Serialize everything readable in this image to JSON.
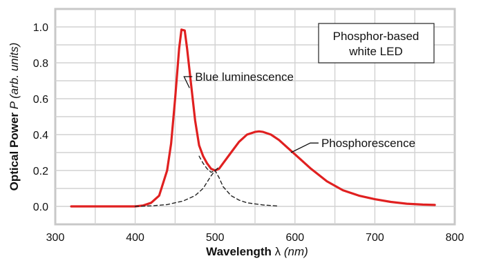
{
  "chart_data": {
    "type": "line",
    "xlabel": {
      "bold": "Wavelength",
      "symbol": " λ ",
      "unit": "(nm)"
    },
    "ylabel": {
      "bold": "Optical Power",
      "symbol": " P ",
      "unit": "(arb. units)"
    },
    "xlim": [
      300,
      800
    ],
    "ylim": [
      -0.1,
      1.1
    ],
    "x_ticks": [
      300,
      400,
      500,
      600,
      700,
      800
    ],
    "x_tick_labels": [
      "300",
      "400",
      "500",
      "600",
      "700",
      "800"
    ],
    "y_ticks": [
      0.0,
      0.2,
      0.4,
      0.6,
      0.8,
      1.0
    ],
    "y_tick_labels": [
      "0.0",
      "0.2",
      "0.4",
      "0.6",
      "0.8",
      "1.0"
    ],
    "grid": true,
    "legend_box": {
      "line1": "Phosphor-based",
      "line2": "white LED",
      "position": "top-right"
    },
    "series": [
      {
        "style": "solid",
        "color": "#e02020",
        "x": [
          320,
          400,
          410,
          420,
          430,
          440,
          445,
          450,
          455,
          458,
          462,
          465,
          470,
          475,
          480,
          485,
          490,
          495,
          500,
          505,
          510,
          520,
          530,
          540,
          550,
          555,
          560,
          570,
          580,
          590,
          600,
          620,
          640,
          660,
          680,
          700,
          720,
          740,
          760,
          775
        ],
        "values": [
          0.0,
          0.0,
          0.005,
          0.02,
          0.06,
          0.2,
          0.35,
          0.6,
          0.88,
          0.985,
          0.98,
          0.88,
          0.68,
          0.48,
          0.34,
          0.28,
          0.24,
          0.21,
          0.2,
          0.21,
          0.24,
          0.3,
          0.36,
          0.4,
          0.415,
          0.418,
          0.415,
          0.4,
          0.37,
          0.33,
          0.29,
          0.21,
          0.14,
          0.09,
          0.06,
          0.04,
          0.025,
          0.015,
          0.01,
          0.008
        ]
      },
      {
        "style": "dashed",
        "color": "#222222",
        "x": [
          400,
          420,
          440,
          460,
          475,
          485,
          495,
          500,
          505,
          510,
          520,
          530,
          540,
          560,
          580
        ],
        "values": [
          0.0,
          0.003,
          0.01,
          0.03,
          0.06,
          0.1,
          0.17,
          0.2,
          0.16,
          0.11,
          0.06,
          0.035,
          0.02,
          0.008,
          0.002
        ]
      },
      {
        "style": "dashed",
        "color": "#222222",
        "x": [
          480,
          485,
          490,
          495,
          500,
          505
        ],
        "values": [
          0.28,
          0.24,
          0.21,
          0.19,
          0.2,
          0.22
        ]
      }
    ],
    "annotations": [
      {
        "text": "Blue luminescence",
        "x": 475,
        "y": 0.7,
        "line_to": [
          468,
          0.66
        ]
      },
      {
        "text": "Phosphorescence",
        "x": 633,
        "y": 0.33,
        "line_to": [
          595,
          0.3
        ]
      }
    ]
  }
}
